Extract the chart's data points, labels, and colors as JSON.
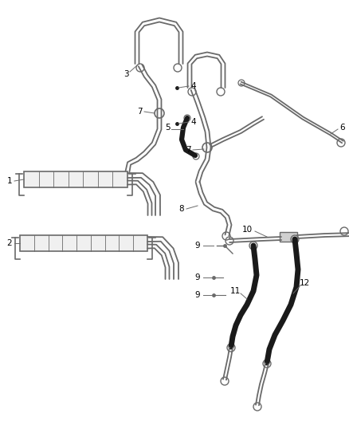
{
  "background_color": "#ffffff",
  "line_color": "#6a6a6a",
  "dark_line_color": "#1a1a1a",
  "label_color": "#000000",
  "fig_width": 4.38,
  "fig_height": 5.33,
  "dpi": 100
}
